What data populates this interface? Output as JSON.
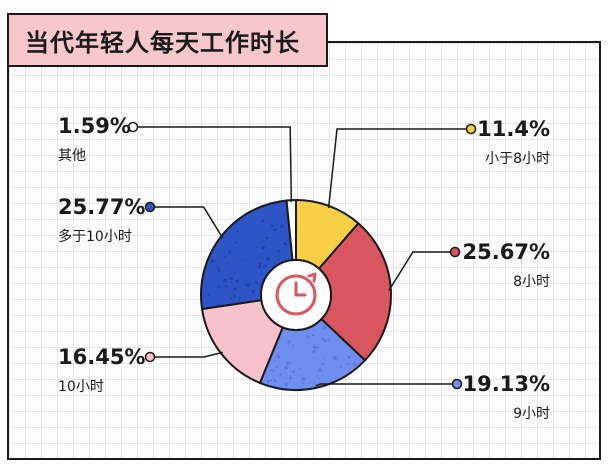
{
  "title": "当代年轻人每天工作时长",
  "chart_data": {
    "type": "pie",
    "donut": true,
    "center_icon": "clock-icon",
    "slices": [
      {
        "label": "小于8小时",
        "value": 11.4,
        "display": "11.4%",
        "color": "#f7cf47"
      },
      {
        "label": "8小时",
        "value": 25.67,
        "display": "25.67%",
        "color": "#d9565e"
      },
      {
        "label": "9小时",
        "value": 19.13,
        "display": "19.13%",
        "color": "#6f8ef0"
      },
      {
        "label": "10小时",
        "value": 16.45,
        "display": "16.45%",
        "color": "#f9c0cd"
      },
      {
        "label": "多于10小时",
        "value": 25.77,
        "display": "25.77%",
        "color": "#2e55c8"
      },
      {
        "label": "其他",
        "value": 1.59,
        "display": "1.59%",
        "color": "#ffffff"
      }
    ]
  }
}
